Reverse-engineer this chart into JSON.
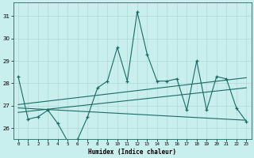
{
  "title": "",
  "xlabel": "Humidex (Indice chaleur)",
  "bg_color": "#c8eeed",
  "grid_color": "#b0d8d6",
  "line_color": "#1a6b65",
  "x_ticks": [
    0,
    1,
    2,
    3,
    4,
    5,
    6,
    7,
    8,
    9,
    10,
    11,
    12,
    13,
    14,
    15,
    16,
    17,
    18,
    19,
    20,
    21,
    22,
    23
  ],
  "y_ticks": [
    26,
    27,
    28,
    29,
    30,
    31
  ],
  "ylim": [
    25.5,
    31.6
  ],
  "xlim": [
    -0.5,
    23.5
  ],
  "series1": [
    28.3,
    26.4,
    26.5,
    26.8,
    26.2,
    25.4,
    25.5,
    26.5,
    27.8,
    28.1,
    29.6,
    28.1,
    31.2,
    29.3,
    28.1,
    28.1,
    28.2,
    26.8,
    29.0,
    26.8,
    28.3,
    28.2,
    26.9,
    26.3
  ],
  "trend1_x": [
    0,
    23
  ],
  "trend1_y": [
    26.7,
    27.8
  ],
  "trend2_x": [
    0,
    23
  ],
  "trend2_y": [
    27.05,
    28.25
  ],
  "trend3_x": [
    0,
    23
  ],
  "trend3_y": [
    26.9,
    26.35
  ]
}
